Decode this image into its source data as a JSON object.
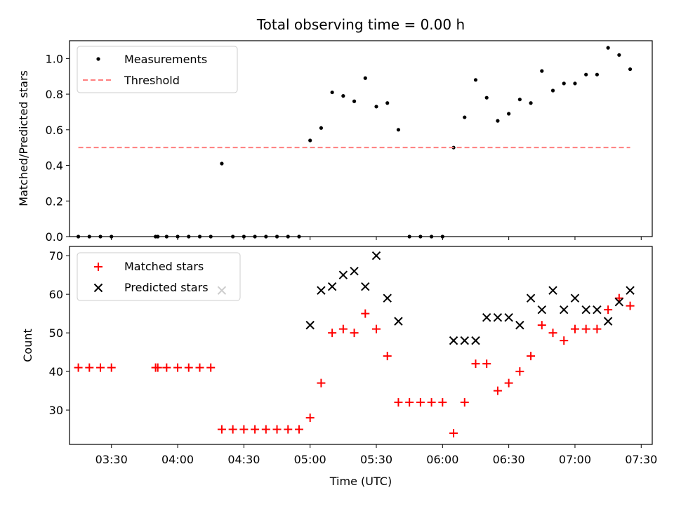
{
  "chart_data": [
    {
      "type": "scatter",
      "title": "Total observing time = 0.00 h",
      "xlabel": "",
      "ylabel": "Matched/Predicted stars",
      "xlim": [
        "03:11",
        "07:35"
      ],
      "ylim": [
        0,
        1.1
      ],
      "yticks": [
        "0.0",
        "0.2",
        "0.4",
        "0.6",
        "0.8",
        "1.0"
      ],
      "legend_position": "top-left",
      "series": [
        {
          "name": "Measurements",
          "style": "dot",
          "color": "#000000",
          "points": [
            [
              "03:15",
              0
            ],
            [
              "03:20",
              0
            ],
            [
              "03:25",
              0
            ],
            [
              "03:30",
              0
            ],
            [
              "03:50",
              0
            ],
            [
              "03:51",
              0
            ],
            [
              "03:55",
              0
            ],
            [
              "04:00",
              0
            ],
            [
              "04:05",
              0
            ],
            [
              "04:10",
              0
            ],
            [
              "04:15",
              0
            ],
            [
              "04:20",
              0.41
            ],
            [
              "04:25",
              0
            ],
            [
              "04:30",
              0
            ],
            [
              "04:35",
              0
            ],
            [
              "04:40",
              0
            ],
            [
              "04:45",
              0
            ],
            [
              "04:50",
              0
            ],
            [
              "04:55",
              0
            ],
            [
              "05:00",
              0.54
            ],
            [
              "05:05",
              0.61
            ],
            [
              "05:10",
              0.81
            ],
            [
              "05:15",
              0.79
            ],
            [
              "05:20",
              0.76
            ],
            [
              "05:25",
              0.89
            ],
            [
              "05:30",
              0.73
            ],
            [
              "05:35",
              0.75
            ],
            [
              "05:40",
              0.6
            ],
            [
              "05:45",
              0
            ],
            [
              "05:50",
              0
            ],
            [
              "05:55",
              0
            ],
            [
              "06:00",
              0
            ],
            [
              "06:05",
              0.5
            ],
            [
              "06:10",
              0.67
            ],
            [
              "06:15",
              0.88
            ],
            [
              "06:20",
              0.78
            ],
            [
              "06:25",
              0.65
            ],
            [
              "06:30",
              0.69
            ],
            [
              "06:35",
              0.77
            ],
            [
              "06:40",
              0.75
            ],
            [
              "06:45",
              0.93
            ],
            [
              "06:50",
              0.82
            ],
            [
              "06:55",
              0.86
            ],
            [
              "07:00",
              0.86
            ],
            [
              "07:05",
              0.91
            ],
            [
              "07:10",
              0.91
            ],
            [
              "07:15",
              1.06
            ],
            [
              "07:20",
              1.02
            ],
            [
              "07:25",
              0.94
            ]
          ]
        },
        {
          "name": "Threshold",
          "style": "dashed-line",
          "color": "#ff7f7f",
          "points": [
            [
              "03:15",
              0.5
            ],
            [
              "07:25",
              0.5
            ]
          ]
        }
      ]
    },
    {
      "type": "scatter",
      "title": "",
      "xlabel": "Time (UTC)",
      "ylabel": "Count",
      "xlim": [
        "03:11",
        "07:35"
      ],
      "ylim": [
        21.1,
        72.4
      ],
      "yticks": [
        "30",
        "40",
        "50",
        "60",
        "70"
      ],
      "xticks": [
        "03:30",
        "04:00",
        "04:30",
        "05:00",
        "05:30",
        "06:00",
        "06:30",
        "07:00",
        "07:30"
      ],
      "legend_position": "top-left",
      "series": [
        {
          "name": "Matched stars",
          "style": "plus",
          "color": "#ff0000",
          "points": [
            [
              "03:15",
              41
            ],
            [
              "03:20",
              41
            ],
            [
              "03:25",
              41
            ],
            [
              "03:30",
              41
            ],
            [
              "03:50",
              41
            ],
            [
              "03:51",
              41
            ],
            [
              "03:55",
              41
            ],
            [
              "04:00",
              41
            ],
            [
              "04:05",
              41
            ],
            [
              "04:10",
              41
            ],
            [
              "04:15",
              41
            ],
            [
              "04:20",
              25
            ],
            [
              "04:25",
              25
            ],
            [
              "04:30",
              25
            ],
            [
              "04:35",
              25
            ],
            [
              "04:40",
              25
            ],
            [
              "04:45",
              25
            ],
            [
              "04:50",
              25
            ],
            [
              "04:55",
              25
            ],
            [
              "05:00",
              28
            ],
            [
              "05:05",
              37
            ],
            [
              "05:10",
              50
            ],
            [
              "05:15",
              51
            ],
            [
              "05:20",
              50
            ],
            [
              "05:25",
              55
            ],
            [
              "05:30",
              51
            ],
            [
              "05:35",
              44
            ],
            [
              "05:40",
              32
            ],
            [
              "05:45",
              32
            ],
            [
              "05:50",
              32
            ],
            [
              "05:55",
              32
            ],
            [
              "06:00",
              32
            ],
            [
              "06:05",
              24
            ],
            [
              "06:10",
              32
            ],
            [
              "06:15",
              42
            ],
            [
              "06:20",
              42
            ],
            [
              "06:25",
              35
            ],
            [
              "06:30",
              37
            ],
            [
              "06:35",
              40
            ],
            [
              "06:40",
              44
            ],
            [
              "06:45",
              52
            ],
            [
              "06:50",
              50
            ],
            [
              "06:55",
              48
            ],
            [
              "07:00",
              51
            ],
            [
              "07:05",
              51
            ],
            [
              "07:10",
              51
            ],
            [
              "07:15",
              56
            ],
            [
              "07:20",
              59
            ],
            [
              "07:25",
              57
            ]
          ]
        },
        {
          "name": "Predicted stars",
          "style": "x",
          "color": "#000000",
          "points": [
            [
              "04:20",
              61
            ],
            [
              "05:00",
              52
            ],
            [
              "05:05",
              61
            ],
            [
              "05:10",
              62
            ],
            [
              "05:15",
              65
            ],
            [
              "05:20",
              66
            ],
            [
              "05:25",
              62
            ],
            [
              "05:30",
              70
            ],
            [
              "05:35",
              59
            ],
            [
              "05:40",
              53
            ],
            [
              "06:05",
              48
            ],
            [
              "06:10",
              48
            ],
            [
              "06:15",
              48
            ],
            [
              "06:20",
              54
            ],
            [
              "06:25",
              54
            ],
            [
              "06:30",
              54
            ],
            [
              "06:35",
              52
            ],
            [
              "06:40",
              59
            ],
            [
              "06:45",
              56
            ],
            [
              "06:50",
              61
            ],
            [
              "06:55",
              56
            ],
            [
              "07:00",
              59
            ],
            [
              "07:05",
              56
            ],
            [
              "07:10",
              56
            ],
            [
              "07:15",
              53
            ],
            [
              "07:20",
              58
            ],
            [
              "07:25",
              61
            ]
          ]
        }
      ]
    }
  ]
}
